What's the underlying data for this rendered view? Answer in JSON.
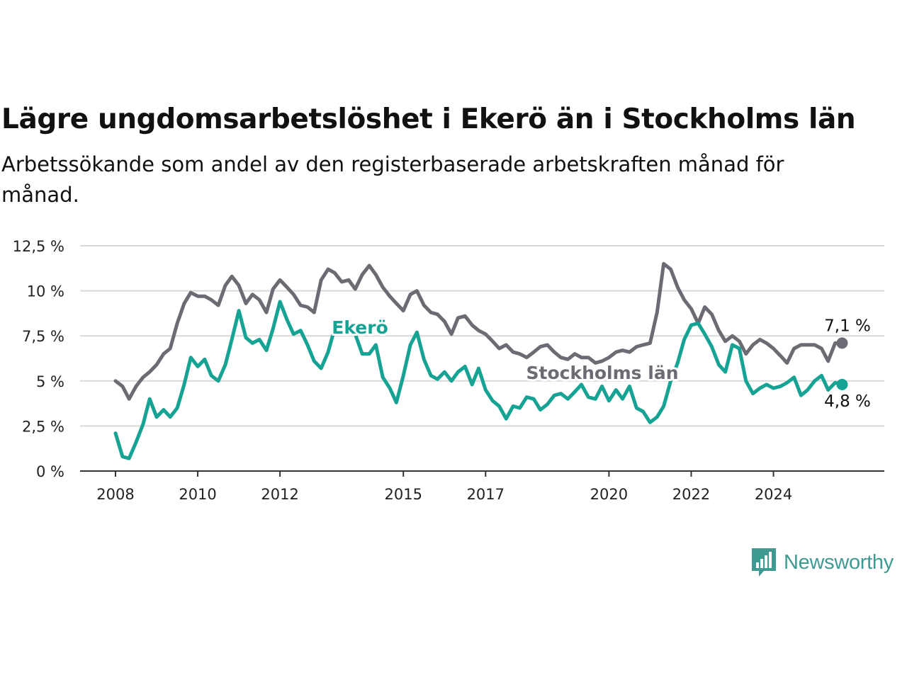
{
  "header": {
    "title": "Lägre ungdomsarbetslöshet i Ekerö än i Stockholms län",
    "subtitle": "Arbetssökande som andel av den registerbaserade arbetskraften månad för månad."
  },
  "brand": {
    "name": "Newsworthy",
    "color": "#3f9a91",
    "icon": "newsworthy-logo-icon"
  },
  "chart_data": {
    "type": "line",
    "x_unit": "year (decimal)",
    "xlim": [
      2008,
      2025.8
    ],
    "ylim": [
      0,
      12.5
    ],
    "y_ticks": [
      {
        "value": 0,
        "label": "0 %"
      },
      {
        "value": 2.5,
        "label": "2,5 %"
      },
      {
        "value": 5,
        "label": "5 %"
      },
      {
        "value": 7.5,
        "label": "7,5 %"
      },
      {
        "value": 10,
        "label": "10 %"
      },
      {
        "value": 12.5,
        "label": "12,5 %"
      }
    ],
    "x_ticks": [
      {
        "value": 2008,
        "label": "2008"
      },
      {
        "value": 2010,
        "label": "2010"
      },
      {
        "value": 2012,
        "label": "2012"
      },
      {
        "value": 2015,
        "label": "2015"
      },
      {
        "value": 2017,
        "label": "2017"
      },
      {
        "value": 2020,
        "label": "2020"
      },
      {
        "value": 2022,
        "label": "2022"
      },
      {
        "value": 2024,
        "label": "2024"
      }
    ],
    "grid": true,
    "series": [
      {
        "name": "Stockholms län",
        "color": "#6b6b73",
        "end_label": "7,1 %",
        "points": [
          [
            2008.0,
            5.0
          ],
          [
            2008.17,
            4.7
          ],
          [
            2008.33,
            4.0
          ],
          [
            2008.5,
            4.7
          ],
          [
            2008.67,
            5.2
          ],
          [
            2008.83,
            5.5
          ],
          [
            2009.0,
            5.9
          ],
          [
            2009.17,
            6.5
          ],
          [
            2009.33,
            6.8
          ],
          [
            2009.5,
            8.2
          ],
          [
            2009.67,
            9.3
          ],
          [
            2009.83,
            9.9
          ],
          [
            2010.0,
            9.7
          ],
          [
            2010.17,
            9.7
          ],
          [
            2010.33,
            9.5
          ],
          [
            2010.5,
            9.2
          ],
          [
            2010.67,
            10.3
          ],
          [
            2010.83,
            10.8
          ],
          [
            2011.0,
            10.3
          ],
          [
            2011.17,
            9.3
          ],
          [
            2011.33,
            9.8
          ],
          [
            2011.5,
            9.5
          ],
          [
            2011.67,
            8.8
          ],
          [
            2011.83,
            10.1
          ],
          [
            2012.0,
            10.6
          ],
          [
            2012.17,
            10.2
          ],
          [
            2012.33,
            9.8
          ],
          [
            2012.5,
            9.2
          ],
          [
            2012.67,
            9.1
          ],
          [
            2012.83,
            8.8
          ],
          [
            2013.0,
            10.6
          ],
          [
            2013.17,
            11.2
          ],
          [
            2013.33,
            11.0
          ],
          [
            2013.5,
            10.5
          ],
          [
            2013.67,
            10.6
          ],
          [
            2013.83,
            10.1
          ],
          [
            2014.0,
            10.9
          ],
          [
            2014.17,
            11.4
          ],
          [
            2014.33,
            10.9
          ],
          [
            2014.5,
            10.2
          ],
          [
            2014.67,
            9.7
          ],
          [
            2014.83,
            9.3
          ],
          [
            2015.0,
            8.9
          ],
          [
            2015.17,
            9.8
          ],
          [
            2015.33,
            10.0
          ],
          [
            2015.5,
            9.2
          ],
          [
            2015.67,
            8.8
          ],
          [
            2015.83,
            8.7
          ],
          [
            2016.0,
            8.3
          ],
          [
            2016.17,
            7.6
          ],
          [
            2016.33,
            8.5
          ],
          [
            2016.5,
            8.6
          ],
          [
            2016.67,
            8.1
          ],
          [
            2016.83,
            7.8
          ],
          [
            2017.0,
            7.6
          ],
          [
            2017.17,
            7.2
          ],
          [
            2017.33,
            6.8
          ],
          [
            2017.5,
            7.0
          ],
          [
            2017.67,
            6.6
          ],
          [
            2017.83,
            6.5
          ],
          [
            2018.0,
            6.3
          ],
          [
            2018.17,
            6.6
          ],
          [
            2018.33,
            6.9
          ],
          [
            2018.5,
            7.0
          ],
          [
            2018.67,
            6.6
          ],
          [
            2018.83,
            6.3
          ],
          [
            2019.0,
            6.2
          ],
          [
            2019.17,
            6.5
          ],
          [
            2019.33,
            6.3
          ],
          [
            2019.5,
            6.3
          ],
          [
            2019.67,
            6.0
          ],
          [
            2019.83,
            6.1
          ],
          [
            2020.0,
            6.3
          ],
          [
            2020.17,
            6.6
          ],
          [
            2020.33,
            6.7
          ],
          [
            2020.5,
            6.6
          ],
          [
            2020.67,
            6.9
          ],
          [
            2020.83,
            7.0
          ],
          [
            2021.0,
            7.1
          ],
          [
            2021.17,
            8.8
          ],
          [
            2021.33,
            11.5
          ],
          [
            2021.5,
            11.2
          ],
          [
            2021.67,
            10.2
          ],
          [
            2021.83,
            9.5
          ],
          [
            2022.0,
            9.0
          ],
          [
            2022.17,
            8.2
          ],
          [
            2022.33,
            9.1
          ],
          [
            2022.5,
            8.7
          ],
          [
            2022.67,
            7.8
          ],
          [
            2022.83,
            7.2
          ],
          [
            2023.0,
            7.5
          ],
          [
            2023.17,
            7.2
          ],
          [
            2023.33,
            6.5
          ],
          [
            2023.5,
            7.0
          ],
          [
            2023.67,
            7.3
          ],
          [
            2023.83,
            7.1
          ],
          [
            2024.0,
            6.8
          ],
          [
            2024.17,
            6.4
          ],
          [
            2024.33,
            6.0
          ],
          [
            2024.5,
            6.8
          ],
          [
            2024.67,
            7.0
          ],
          [
            2024.83,
            7.0
          ],
          [
            2025.0,
            7.0
          ],
          [
            2025.17,
            6.8
          ],
          [
            2025.33,
            6.1
          ],
          [
            2025.5,
            7.1
          ],
          [
            2025.67,
            7.1
          ]
        ]
      },
      {
        "name": "Ekerö",
        "color": "#16a394",
        "end_label": "4,8 %",
        "points": [
          [
            2008.0,
            2.1
          ],
          [
            2008.17,
            0.8
          ],
          [
            2008.33,
            0.7
          ],
          [
            2008.5,
            1.6
          ],
          [
            2008.67,
            2.6
          ],
          [
            2008.83,
            4.0
          ],
          [
            2009.0,
            3.0
          ],
          [
            2009.17,
            3.4
          ],
          [
            2009.33,
            3.0
          ],
          [
            2009.5,
            3.5
          ],
          [
            2009.67,
            4.8
          ],
          [
            2009.83,
            6.3
          ],
          [
            2010.0,
            5.8
          ],
          [
            2010.17,
            6.2
          ],
          [
            2010.33,
            5.3
          ],
          [
            2010.5,
            5.0
          ],
          [
            2010.67,
            5.9
          ],
          [
            2010.83,
            7.3
          ],
          [
            2011.0,
            8.9
          ],
          [
            2011.17,
            7.4
          ],
          [
            2011.33,
            7.1
          ],
          [
            2011.5,
            7.3
          ],
          [
            2011.67,
            6.7
          ],
          [
            2011.83,
            7.9
          ],
          [
            2012.0,
            9.4
          ],
          [
            2012.17,
            8.4
          ],
          [
            2012.33,
            7.6
          ],
          [
            2012.5,
            7.8
          ],
          [
            2012.67,
            7.0
          ],
          [
            2012.83,
            6.1
          ],
          [
            2013.0,
            5.7
          ],
          [
            2013.17,
            6.6
          ],
          [
            2013.33,
            7.9
          ],
          [
            2013.5,
            7.6
          ],
          [
            2013.67,
            7.8
          ],
          [
            2013.83,
            7.6
          ],
          [
            2014.0,
            6.5
          ],
          [
            2014.17,
            6.5
          ],
          [
            2014.33,
            7.0
          ],
          [
            2014.5,
            5.2
          ],
          [
            2014.67,
            4.6
          ],
          [
            2014.83,
            3.8
          ],
          [
            2015.0,
            5.3
          ],
          [
            2015.17,
            7.0
          ],
          [
            2015.33,
            7.7
          ],
          [
            2015.5,
            6.2
          ],
          [
            2015.67,
            5.3
          ],
          [
            2015.83,
            5.1
          ],
          [
            2016.0,
            5.5
          ],
          [
            2016.17,
            5.0
          ],
          [
            2016.33,
            5.5
          ],
          [
            2016.5,
            5.8
          ],
          [
            2016.67,
            4.8
          ],
          [
            2016.83,
            5.7
          ],
          [
            2017.0,
            4.5
          ],
          [
            2017.17,
            3.9
          ],
          [
            2017.33,
            3.6
          ],
          [
            2017.5,
            2.9
          ],
          [
            2017.67,
            3.6
          ],
          [
            2017.83,
            3.5
          ],
          [
            2018.0,
            4.1
          ],
          [
            2018.17,
            4.0
          ],
          [
            2018.33,
            3.4
          ],
          [
            2018.5,
            3.7
          ],
          [
            2018.67,
            4.2
          ],
          [
            2018.83,
            4.3
          ],
          [
            2019.0,
            4.0
          ],
          [
            2019.17,
            4.4
          ],
          [
            2019.33,
            4.8
          ],
          [
            2019.5,
            4.1
          ],
          [
            2019.67,
            4.0
          ],
          [
            2019.83,
            4.7
          ],
          [
            2020.0,
            3.9
          ],
          [
            2020.17,
            4.5
          ],
          [
            2020.33,
            4.0
          ],
          [
            2020.5,
            4.7
          ],
          [
            2020.67,
            3.5
          ],
          [
            2020.83,
            3.3
          ],
          [
            2021.0,
            2.7
          ],
          [
            2021.17,
            3.0
          ],
          [
            2021.33,
            3.6
          ],
          [
            2021.5,
            5.0
          ],
          [
            2021.67,
            6.0
          ],
          [
            2021.83,
            7.3
          ],
          [
            2022.0,
            8.1
          ],
          [
            2022.17,
            8.2
          ],
          [
            2022.33,
            7.6
          ],
          [
            2022.5,
            6.9
          ],
          [
            2022.67,
            5.9
          ],
          [
            2022.83,
            5.5
          ],
          [
            2023.0,
            7.0
          ],
          [
            2023.17,
            6.8
          ],
          [
            2023.33,
            5.0
          ],
          [
            2023.5,
            4.3
          ],
          [
            2023.67,
            4.6
          ],
          [
            2023.83,
            4.8
          ],
          [
            2024.0,
            4.6
          ],
          [
            2024.17,
            4.7
          ],
          [
            2024.33,
            4.9
          ],
          [
            2024.5,
            5.2
          ],
          [
            2024.67,
            4.2
          ],
          [
            2024.83,
            4.5
          ],
          [
            2025.0,
            5.0
          ],
          [
            2025.17,
            5.3
          ],
          [
            2025.33,
            4.5
          ],
          [
            2025.5,
            4.9
          ],
          [
            2025.67,
            4.8
          ]
        ]
      }
    ]
  }
}
